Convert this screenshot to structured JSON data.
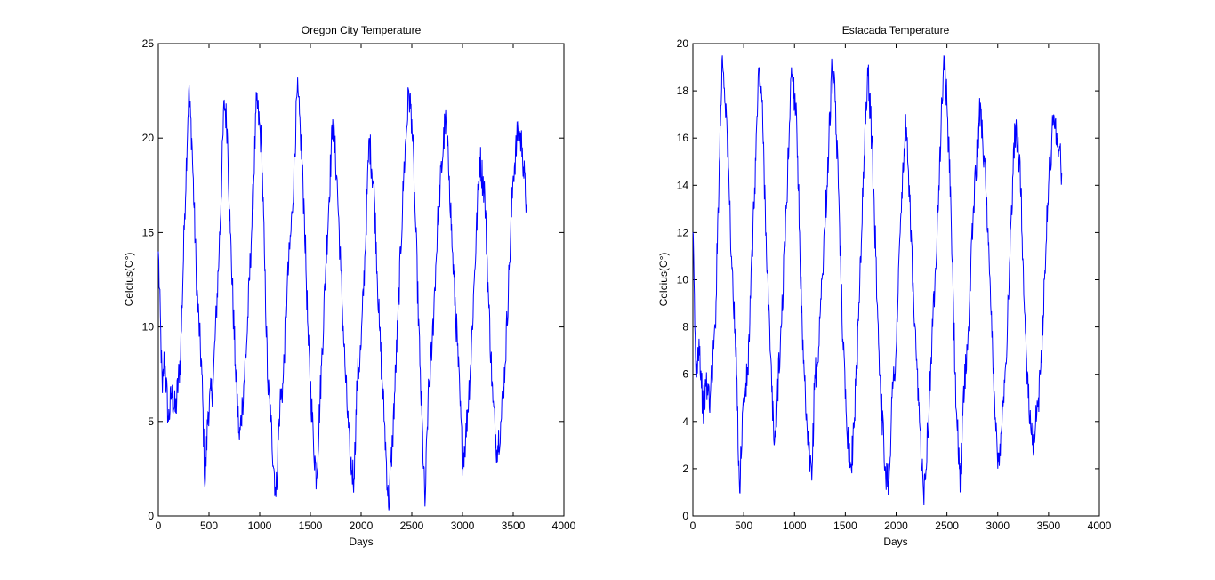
{
  "chart_data": [
    {
      "type": "line",
      "title": "Oregon City Temperature",
      "xlabel": "Days",
      "ylabel": "Celcius(C°)",
      "xlim": [
        0,
        4000
      ],
      "ylim": [
        0,
        25
      ],
      "grid": false,
      "xticks": [
        "0",
        "500",
        "1000",
        "1500",
        "2000",
        "2500",
        "3000",
        "3500",
        "4000"
      ],
      "yticks": [
        "0",
        "5",
        "10",
        "15",
        "20",
        "25"
      ],
      "series": [
        {
          "color": "#0000ff",
          "x": [
            0,
            40,
            60,
            100,
            130,
            170,
            220,
            260,
            300,
            330,
            380,
            430,
            460,
            490,
            540,
            600,
            650,
            680,
            710,
            760,
            800,
            830,
            870,
            920,
            970,
            1020,
            1050,
            1080,
            1110,
            1160,
            1200,
            1230,
            1270,
            1320,
            1370,
            1400,
            1440,
            1480,
            1530,
            1560,
            1610,
            1650,
            1720,
            1760,
            1800,
            1840,
            1890,
            1930,
            1960,
            2000,
            2040,
            2080,
            2130,
            2180,
            2230,
            2270,
            2310,
            2360,
            2420,
            2470,
            2500,
            2540,
            2580,
            2630,
            2660,
            2700,
            2760,
            2830,
            2870,
            2900,
            2950,
            3000,
            3030,
            3080,
            3120,
            3170,
            3220,
            3260,
            3300,
            3340,
            3380,
            3420,
            3460,
            3500,
            3550,
            3590,
            3620,
            3630
          ],
          "y": [
            14,
            6.5,
            8.5,
            5,
            6.5,
            5.5,
            8.5,
            16,
            22.5,
            20,
            12,
            7.5,
            1.5,
            5.5,
            7,
            14,
            22,
            20.5,
            15,
            8,
            4,
            6,
            9,
            15,
            22,
            19.5,
            13,
            7,
            5,
            1,
            6,
            7,
            12,
            16,
            22.5,
            20.5,
            16,
            9,
            4,
            2,
            8,
            13,
            21,
            18,
            13,
            8,
            3,
            2,
            7,
            9,
            14,
            20,
            17,
            10,
            5,
            0.5,
            4,
            10,
            18,
            22.5,
            21,
            15,
            8,
            0.5,
            6,
            9,
            16,
            21,
            18,
            14,
            9,
            3,
            4,
            8,
            13,
            19,
            17,
            11,
            6,
            3.5,
            5,
            8,
            13,
            18,
            20.5,
            19.5,
            17,
            16.5
          ]
        }
      ]
    },
    {
      "type": "line",
      "title": "Estacada Temperature",
      "xlabel": "Days",
      "ylabel": "Celcius(C°)",
      "xlim": [
        0,
        4000
      ],
      "ylim": [
        0,
        20
      ],
      "grid": false,
      "xticks": [
        "0",
        "500",
        "1000",
        "1500",
        "2000",
        "2500",
        "3000",
        "3500",
        "4000"
      ],
      "yticks": [
        "0",
        "2",
        "4",
        "6",
        "8",
        "10",
        "12",
        "14",
        "16",
        "18",
        "20"
      ],
      "series": [
        {
          "color": "#0000ff",
          "x": [
            0,
            30,
            60,
            100,
            130,
            170,
            220,
            260,
            290,
            330,
            380,
            430,
            460,
            490,
            540,
            600,
            650,
            680,
            720,
            760,
            800,
            830,
            870,
            920,
            970,
            1020,
            1050,
            1080,
            1130,
            1170,
            1200,
            1230,
            1270,
            1320,
            1370,
            1400,
            1440,
            1480,
            1530,
            1560,
            1610,
            1650,
            1720,
            1760,
            1800,
            1840,
            1890,
            1930,
            1960,
            2000,
            2040,
            2090,
            2130,
            2180,
            2230,
            2270,
            2310,
            2360,
            2420,
            2470,
            2500,
            2540,
            2580,
            2630,
            2660,
            2700,
            2760,
            2830,
            2870,
            2900,
            2950,
            3000,
            3030,
            3080,
            3120,
            3170,
            3220,
            3260,
            3300,
            3340,
            3380,
            3420,
            3460,
            3500,
            3550,
            3590,
            3620,
            3630
          ],
          "y": [
            12,
            6,
            7.5,
            4.5,
            5.5,
            5,
            8,
            15,
            19.5,
            17,
            11,
            6,
            1,
            4.5,
            6,
            13,
            19,
            17.5,
            12,
            7,
            3,
            5,
            8,
            13,
            19,
            17,
            12,
            7,
            3,
            1.5,
            6,
            6.5,
            10,
            14,
            19,
            17.5,
            13,
            7,
            3,
            2,
            6,
            11,
            19,
            16,
            11,
            6,
            2,
            1.5,
            5,
            7,
            12,
            16.5,
            14,
            8,
            4,
            1,
            3.5,
            8,
            14,
            19.5,
            17.5,
            13,
            6,
            1,
            5,
            7,
            13,
            17.5,
            15,
            12,
            7,
            2,
            3.5,
            6.5,
            11,
            16.5,
            15,
            9,
            5,
            3,
            4,
            6,
            10,
            14,
            17,
            16,
            15,
            14.5
          ]
        }
      ]
    }
  ]
}
